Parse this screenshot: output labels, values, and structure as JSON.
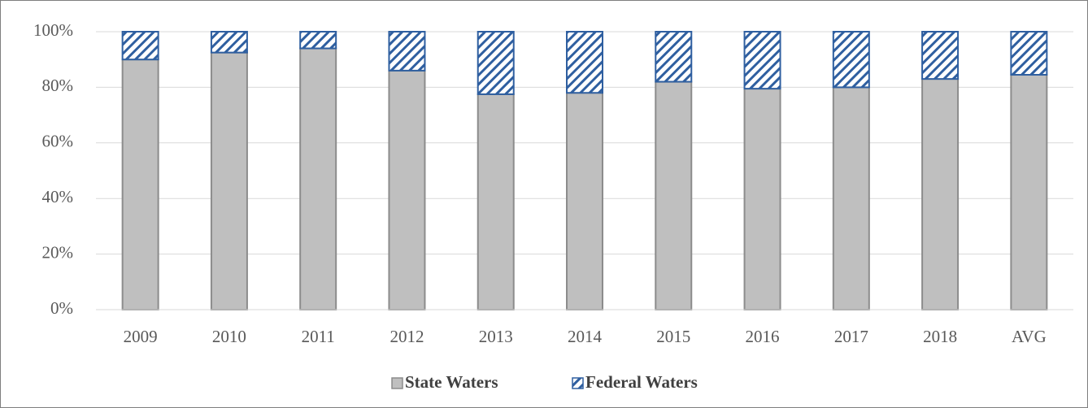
{
  "chart_data": {
    "type": "stacked_bar",
    "categories": [
      "2009",
      "2010",
      "2011",
      "2012",
      "2013",
      "2014",
      "2015",
      "2016",
      "2017",
      "2018",
      "AVG"
    ],
    "series": [
      {
        "name": "State Waters",
        "color": "#bfbfbf",
        "pattern": "solid",
        "values": [
          90,
          92.5,
          94,
          86,
          77.5,
          78,
          82,
          79.5,
          80,
          83,
          84.5
        ]
      },
      {
        "name": "Federal Waters",
        "color": "#2f5fa0",
        "pattern": "hatch",
        "values": [
          10,
          7.5,
          6,
          14,
          22.5,
          22,
          18,
          20.5,
          20,
          17,
          15.5
        ]
      }
    ],
    "ylim": [
      0,
      100
    ],
    "yticks": [
      {
        "value": 0,
        "label": "0%"
      },
      {
        "value": 20,
        "label": "20%"
      },
      {
        "value": 40,
        "label": "40%"
      },
      {
        "value": 60,
        "label": "60%"
      },
      {
        "value": 80,
        "label": "80%"
      },
      {
        "value": 100,
        "label": "100%"
      }
    ],
    "grid": true,
    "legend": "bottom"
  }
}
